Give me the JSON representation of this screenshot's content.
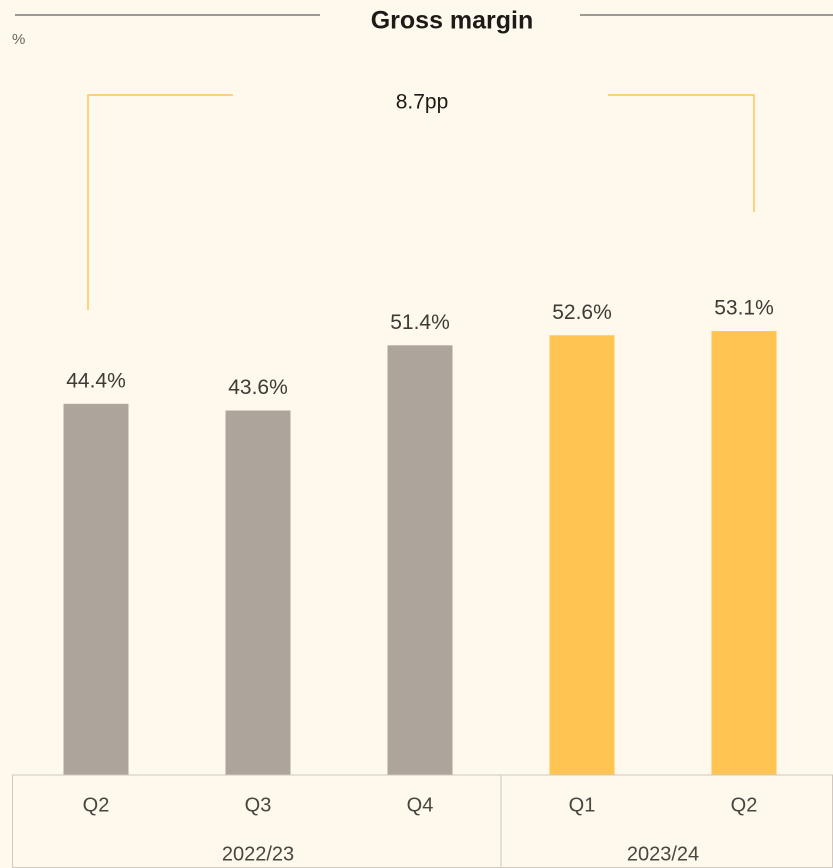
{
  "chart_data": {
    "type": "bar",
    "title": "Gross margin",
    "unit_label": "%",
    "annotation": "8.7pp",
    "categories": [
      "Q2",
      "Q3",
      "Q4",
      "Q1",
      "Q2"
    ],
    "groups": [
      "2022/23",
      "2022/23",
      "2022/23",
      "2023/24",
      "2023/24"
    ],
    "values": [
      44.4,
      43.6,
      51.4,
      52.6,
      53.1
    ],
    "value_labels": [
      "44.4%",
      "43.6%",
      "51.4%",
      "52.6%",
      "53.1%"
    ],
    "colors": [
      "#ada59c",
      "#ada59c",
      "#ada59c",
      "#ffc451",
      "#ffc451"
    ]
  }
}
